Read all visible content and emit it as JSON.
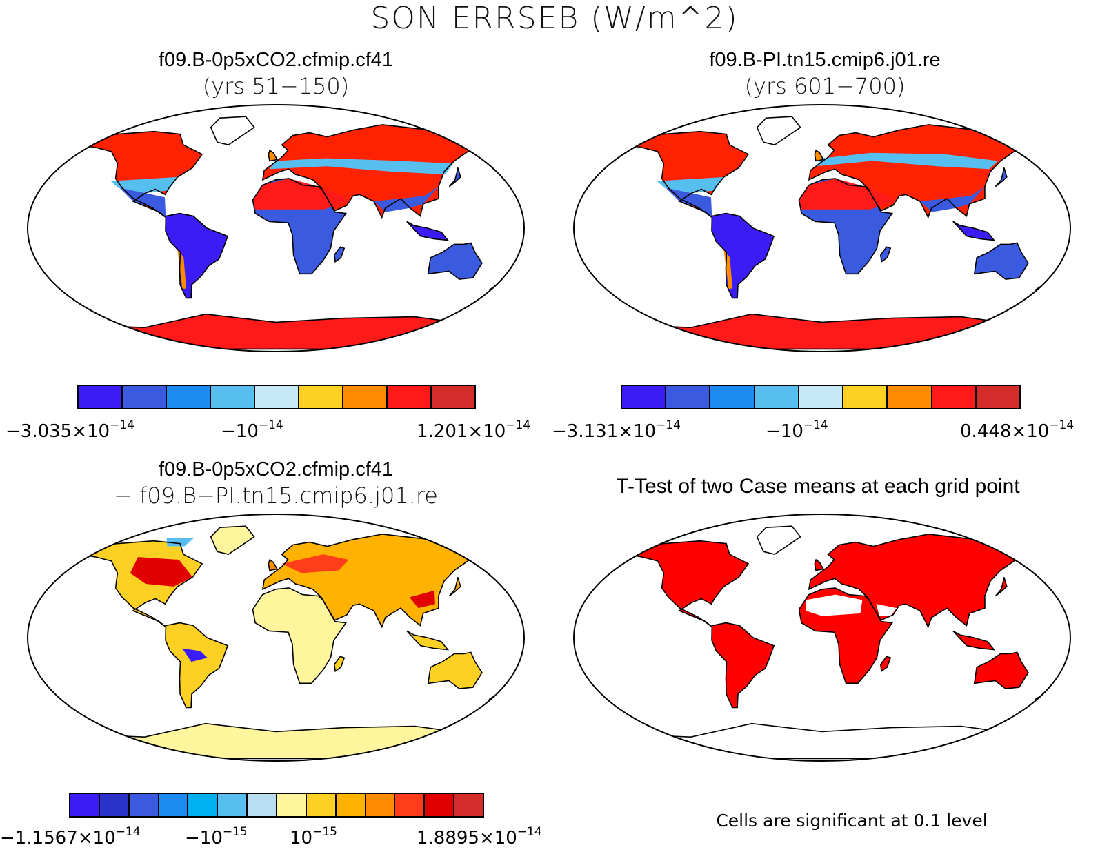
{
  "title": "SON ERRSEB (W/m^2)",
  "panels": [
    {
      "id": "case1",
      "title": "f09.B-0p5xCO2.cfmip.cf41",
      "subtitle": "(yrs 51−150)",
      "colorbar": {
        "colors": [
          "#3c1cf4",
          "#3a5be0",
          "#1d8af2",
          "#56bff0",
          "#c7e8f7",
          "#fdd124",
          "#ff8c00",
          "#ff1a1a",
          "#d42b2b"
        ],
        "ticks": [
          {
            "mantissa": "−3.035×10",
            "exponent": "−14"
          },
          {
            "mantissa": "−10",
            "exponent": "−14"
          },
          {
            "mantissa": "1.201×10",
            "exponent": "−14"
          }
        ]
      }
    },
    {
      "id": "case2",
      "title": "f09.B-PI.tn15.cmip6.j01.re",
      "subtitle": "(yrs 601−700)",
      "colorbar": {
        "colors": [
          "#3c1cf4",
          "#3a5be0",
          "#1d8af2",
          "#56bff0",
          "#c7e8f7",
          "#fdd124",
          "#ff8c00",
          "#ff1a1a",
          "#d42b2b"
        ],
        "ticks": [
          {
            "mantissa": "−3.131×10",
            "exponent": "−14"
          },
          {
            "mantissa": "−10",
            "exponent": "−14"
          },
          {
            "mantissa": "0.448×10",
            "exponent": "−14"
          }
        ]
      }
    },
    {
      "id": "difference",
      "title": "f09.B-0p5xCO2.cfmip.cf41",
      "subtitle": "− f09.B−PI.tn15.cmip6.j01.re",
      "colorbar": {
        "colors": [
          "#3c1cf4",
          "#2a32c8",
          "#3a5be0",
          "#1d8af2",
          "#00b0f0",
          "#56bff0",
          "#b9def2",
          "#fff59d",
          "#fdd124",
          "#ffb300",
          "#ff8c00",
          "#ff3d1a",
          "#e00000",
          "#d42b2b"
        ],
        "ticks": [
          {
            "mantissa": "−1.1567×10",
            "exponent": "−14"
          },
          {
            "mantissa": "−10",
            "exponent": "−15"
          },
          {
            "mantissa": "10",
            "exponent": "−15"
          },
          {
            "mantissa": "1.8895×10",
            "exponent": "−14"
          }
        ]
      }
    },
    {
      "id": "ttest",
      "title": "T-Test of two Case means at each grid point",
      "note": "Cells are significant at 0.1 level",
      "sig_color": "#ff0000"
    }
  ]
}
